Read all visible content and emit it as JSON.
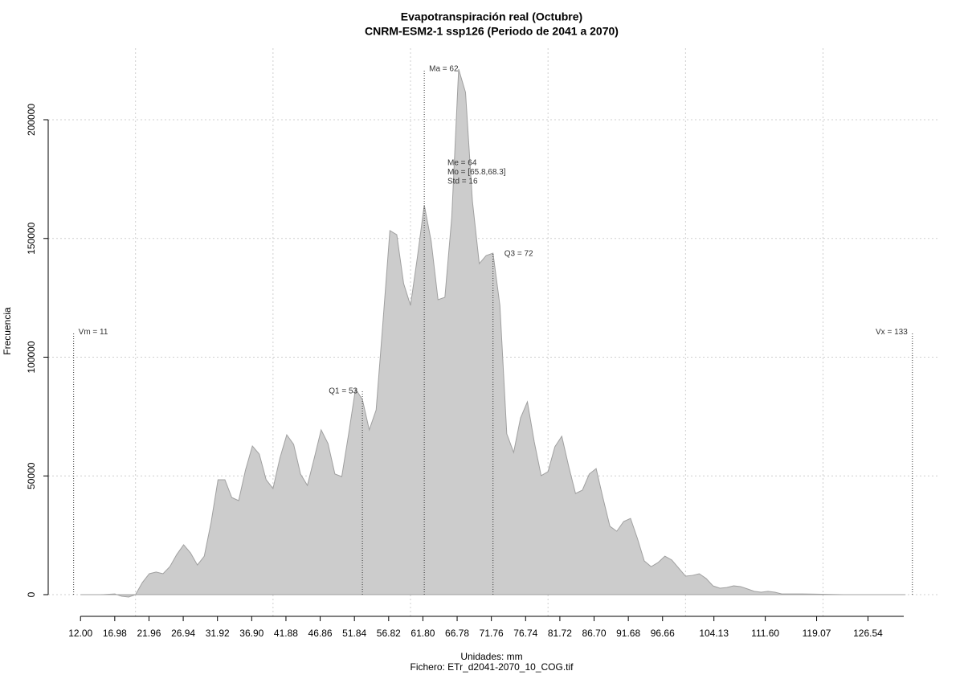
{
  "chart_data": {
    "type": "area",
    "title": "Evapotranspiración real (Octubre)",
    "subtitle": "CNRM-ESM2-1 ssp126 (Periodo de 2041 a 2070)",
    "x_label": "Unidades: mm",
    "caption": "Fichero: ETr_d2041-2070_10_COG.tif",
    "y_label": "Frecuencia",
    "color": "#cccccc",
    "x": [
      12,
      15,
      17,
      18,
      19,
      20,
      21,
      22,
      23,
      24,
      25,
      26,
      27,
      28,
      29,
      30,
      31,
      32,
      33,
      34,
      35,
      36,
      37,
      38,
      39,
      40,
      41,
      42,
      43,
      44,
      45,
      46,
      47,
      48,
      49,
      50,
      51,
      52,
      53,
      54,
      55,
      56,
      57,
      58,
      59,
      60,
      61,
      62,
      63,
      64,
      65,
      66,
      67,
      68,
      69,
      70,
      71,
      72,
      73,
      74,
      75,
      76,
      77,
      78,
      79,
      80,
      81,
      82,
      83,
      84,
      85,
      86,
      87,
      88,
      89,
      90,
      91,
      92,
      93,
      94,
      95,
      96,
      97,
      98,
      99,
      100,
      101,
      102,
      103,
      104,
      105,
      106,
      107,
      108,
      109,
      110,
      111,
      112,
      113,
      114,
      117,
      123,
      132
    ],
    "values": [
      0,
      0,
      300,
      -700,
      -1000,
      0,
      5100,
      8800,
      9500,
      8800,
      11800,
      16900,
      21000,
      17600,
      12500,
      16200,
      30500,
      48400,
      48400,
      40900,
      39600,
      52500,
      62600,
      59200,
      48400,
      44700,
      57500,
      67300,
      63300,
      50800,
      46000,
      57500,
      69400,
      63600,
      50800,
      49700,
      67700,
      86600,
      82200,
      69400,
      77800,
      115100,
      153300,
      151600,
      131000,
      121800,
      142100,
      164100,
      148900,
      124200,
      125200,
      159000,
      221300,
      211500,
      165800,
      139400,
      142800,
      143800,
      121800,
      67700,
      59900,
      74400,
      81200,
      64300,
      50100,
      51800,
      62300,
      66700,
      54100,
      42600,
      44000,
      50800,
      53100,
      40600,
      28800,
      26700,
      30800,
      32100,
      23700,
      14200,
      11800,
      13500,
      16200,
      14600,
      11200,
      7800,
      8100,
      8800,
      6800,
      3700,
      2700,
      3000,
      3700,
      3400,
      2400,
      1400,
      1000,
      1400,
      1000,
      300,
      300,
      0,
      0
    ],
    "xlim": [
      7.3,
      137
    ],
    "ylim": [
      -9475,
      230118
    ],
    "xticks": [
      {
        "value": 12,
        "label": "12.00"
      },
      {
        "value": 16.98,
        "label": "16.98"
      },
      {
        "value": 21.96,
        "label": "21.96"
      },
      {
        "value": 26.94,
        "label": "26.94"
      },
      {
        "value": 31.92,
        "label": "31.92"
      },
      {
        "value": 36.9,
        "label": "36.90"
      },
      {
        "value": 41.88,
        "label": "41.88"
      },
      {
        "value": 46.86,
        "label": "46.86"
      },
      {
        "value": 51.84,
        "label": "51.84"
      },
      {
        "value": 56.82,
        "label": "56.82"
      },
      {
        "value": 61.8,
        "label": "61.80"
      },
      {
        "value": 66.78,
        "label": "66.78"
      },
      {
        "value": 71.76,
        "label": "71.76"
      },
      {
        "value": 76.74,
        "label": "76.74"
      },
      {
        "value": 81.72,
        "label": "81.72"
      },
      {
        "value": 86.7,
        "label": "86.70"
      },
      {
        "value": 91.68,
        "label": "91.68"
      },
      {
        "value": 96.66,
        "label": "96.66"
      },
      {
        "value": 104.13,
        "label": "104.13"
      },
      {
        "value": 111.6,
        "label": "111.60"
      },
      {
        "value": 119.07,
        "label": "119.07"
      },
      {
        "value": 126.54,
        "label": "126.54"
      }
    ],
    "xgrid": [
      20,
      40,
      60,
      80,
      100,
      120
    ],
    "yticks": [
      0,
      50000,
      100000,
      150000,
      200000
    ],
    "grid": true,
    "annotations": [
      {
        "label": "Vm = 11",
        "x": 11,
        "y": 110600
      },
      {
        "label": "Q1 = 53",
        "x": 53,
        "y": 85600
      },
      {
        "label": "Ma = 62",
        "x": 62,
        "y": 221300
      },
      {
        "label": "Q3 = 72",
        "x": 72,
        "y": 143500
      },
      {
        "label": "Vx = 133",
        "x": 133,
        "y": 110600
      }
    ],
    "stats": [
      "Me = 64",
      "Mo = [65.8,68.3]",
      "Std = 16"
    ]
  }
}
